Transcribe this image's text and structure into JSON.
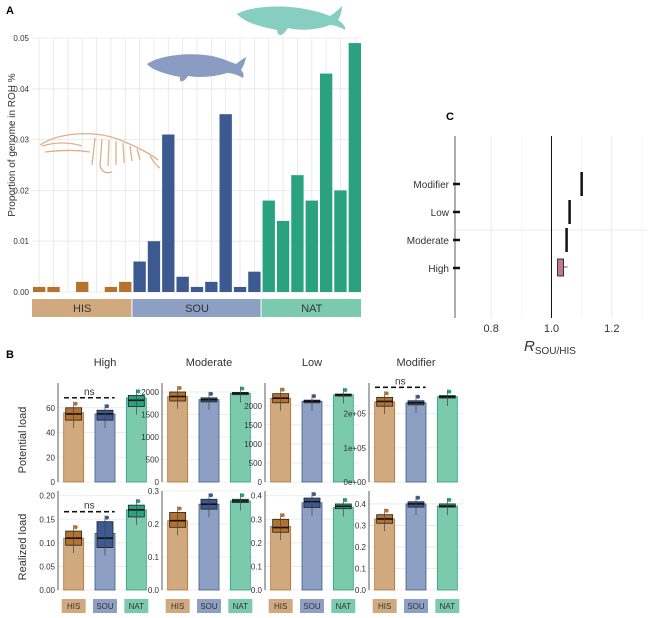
{
  "panel_labels": {
    "a": "A",
    "b": "B",
    "c": "C"
  },
  "colors": {
    "HIS": "#b5722e",
    "SOU": "#3c5a8f",
    "NAT": "#2aa27f",
    "HIS_light": "#d1a97f",
    "SOU_light": "#8e9fc4",
    "NAT_light": "#7ccaad",
    "whale": "#86cfc0",
    "whale_sou": "#8a9cc2",
    "skeleton": "#e0ae8c"
  },
  "chart_data": [
    {
      "panel": "A",
      "type": "bar",
      "ylabel": "Proportion of genome in ROH %",
      "ylim": [
        0,
        0.05
      ],
      "yticks": [
        "0.00",
        "0.01",
        "0.02",
        "0.03",
        "0.04",
        "0.05"
      ],
      "groups": [
        {
          "name": "HIS",
          "values": [
            0.001,
            0.001,
            0.0,
            0.002,
            0.0,
            0.001,
            0.002
          ]
        },
        {
          "name": "SOU",
          "values": [
            0.006,
            0.01,
            0.031,
            0.003,
            0.001,
            0.002,
            0.035,
            0.001,
            0.004
          ]
        },
        {
          "name": "NAT",
          "values": [
            0.018,
            0.014,
            0.023,
            0.018,
            0.043,
            0.02,
            0.049
          ]
        }
      ]
    },
    {
      "panel": "B",
      "type": "box",
      "categories": [
        "HIS",
        "SOU",
        "NAT"
      ],
      "row_labels": [
        "Potential load",
        "Realized load"
      ],
      "panels": [
        {
          "title": "High",
          "row": 0,
          "ylim": [
            0,
            80
          ],
          "yticks": [
            "0",
            "20",
            "40",
            "60"
          ],
          "means": [
            56,
            55,
            68
          ],
          "boxes": [
            [
              50,
              55,
              60
            ],
            [
              50,
              55,
              58
            ],
            [
              61,
              66,
              70
            ]
          ],
          "ns": "ns"
        },
        {
          "title": "Moderate",
          "row": 0,
          "ylim": [
            0,
            2200
          ],
          "yticks": [
            "0",
            "500",
            "1000",
            "1500",
            "2000"
          ],
          "means": [
            1900,
            1830,
            1970
          ],
          "boxes": [
            [
              1800,
              1900,
              2000
            ],
            [
              1780,
              1830,
              1870
            ],
            [
              1940,
              1970,
              1990
            ]
          ],
          "ns": ""
        },
        {
          "title": "Low",
          "row": 0,
          "ylim": [
            0,
            2600
          ],
          "yticks": [
            "0",
            "500",
            "1000",
            "1500",
            "2000"
          ],
          "means": [
            2200,
            2120,
            2290
          ],
          "boxes": [
            [
              2080,
              2200,
              2320
            ],
            [
              2080,
              2120,
              2150
            ],
            [
              2270,
              2290,
              2310
            ]
          ],
          "ns": ""
        },
        {
          "title": "Modifier",
          "row": 0,
          "ylim": [
            0,
            290000
          ],
          "yticks": [
            "0e+00",
            "1e+05",
            "2e+05"
          ],
          "means": [
            235000,
            232000,
            250000
          ],
          "boxes": [
            [
              222000,
              236000,
              248000
            ],
            [
              226000,
              232000,
              238000
            ],
            [
              246000,
              250000,
              253000
            ]
          ],
          "ns": "ns"
        },
        {
          "title": "",
          "row": 1,
          "ylim": [
            0,
            0.21
          ],
          "yticks": [
            "0.00",
            "0.05",
            "0.10",
            "0.15",
            "0.20"
          ],
          "means": [
            0.11,
            0.12,
            0.17
          ],
          "boxes": [
            [
              0.095,
              0.11,
              0.125
            ],
            [
              0.09,
              0.11,
              0.145
            ],
            [
              0.155,
              0.17,
              0.18
            ]
          ],
          "ns": "ns"
        },
        {
          "title": "",
          "row": 1,
          "ylim": [
            0,
            0.3
          ],
          "yticks": [
            "0.0",
            "0.1",
            "0.2",
            "0.3"
          ],
          "means": [
            0.21,
            0.26,
            0.27
          ],
          "boxes": [
            [
              0.19,
              0.21,
              0.235
            ],
            [
              0.245,
              0.26,
              0.275
            ],
            [
              0.265,
              0.27,
              0.275
            ]
          ],
          "ns": ""
        },
        {
          "title": "",
          "row": 1,
          "ylim": [
            0,
            0.42
          ],
          "yticks": [
            "0.0",
            "0.1",
            "0.2",
            "0.3",
            "0.4"
          ],
          "means": [
            0.27,
            0.37,
            0.35
          ],
          "boxes": [
            [
              0.245,
              0.265,
              0.3
            ],
            [
              0.35,
              0.375,
              0.39
            ],
            [
              0.345,
              0.355,
              0.365
            ]
          ],
          "ns": ""
        },
        {
          "title": "",
          "row": 1,
          "ylim": [
            0,
            0.46
          ],
          "yticks": [
            "0.0",
            "0.1",
            "0.2",
            "0.3",
            "0.4"
          ],
          "means": [
            0.33,
            0.4,
            0.39
          ],
          "boxes": [
            [
              0.31,
              0.33,
              0.35
            ],
            [
              0.385,
              0.4,
              0.41
            ],
            [
              0.385,
              0.39,
              0.4
            ]
          ],
          "ns": ""
        }
      ]
    },
    {
      "panel": "C",
      "type": "dotplot",
      "xlabel_main": "R",
      "xlabel_sub": "SOU/HIS",
      "xlim": [
        0.68,
        1.32
      ],
      "xticks": [
        "0.8",
        "1.0",
        "1.2"
      ],
      "ref_line": 1.0,
      "categories": [
        {
          "name": "Modifier",
          "value": 1.1
        },
        {
          "name": "Low",
          "value": 1.06
        },
        {
          "name": "Moderate",
          "value": 1.05
        },
        {
          "name": "High",
          "value": 1.03
        }
      ]
    }
  ]
}
